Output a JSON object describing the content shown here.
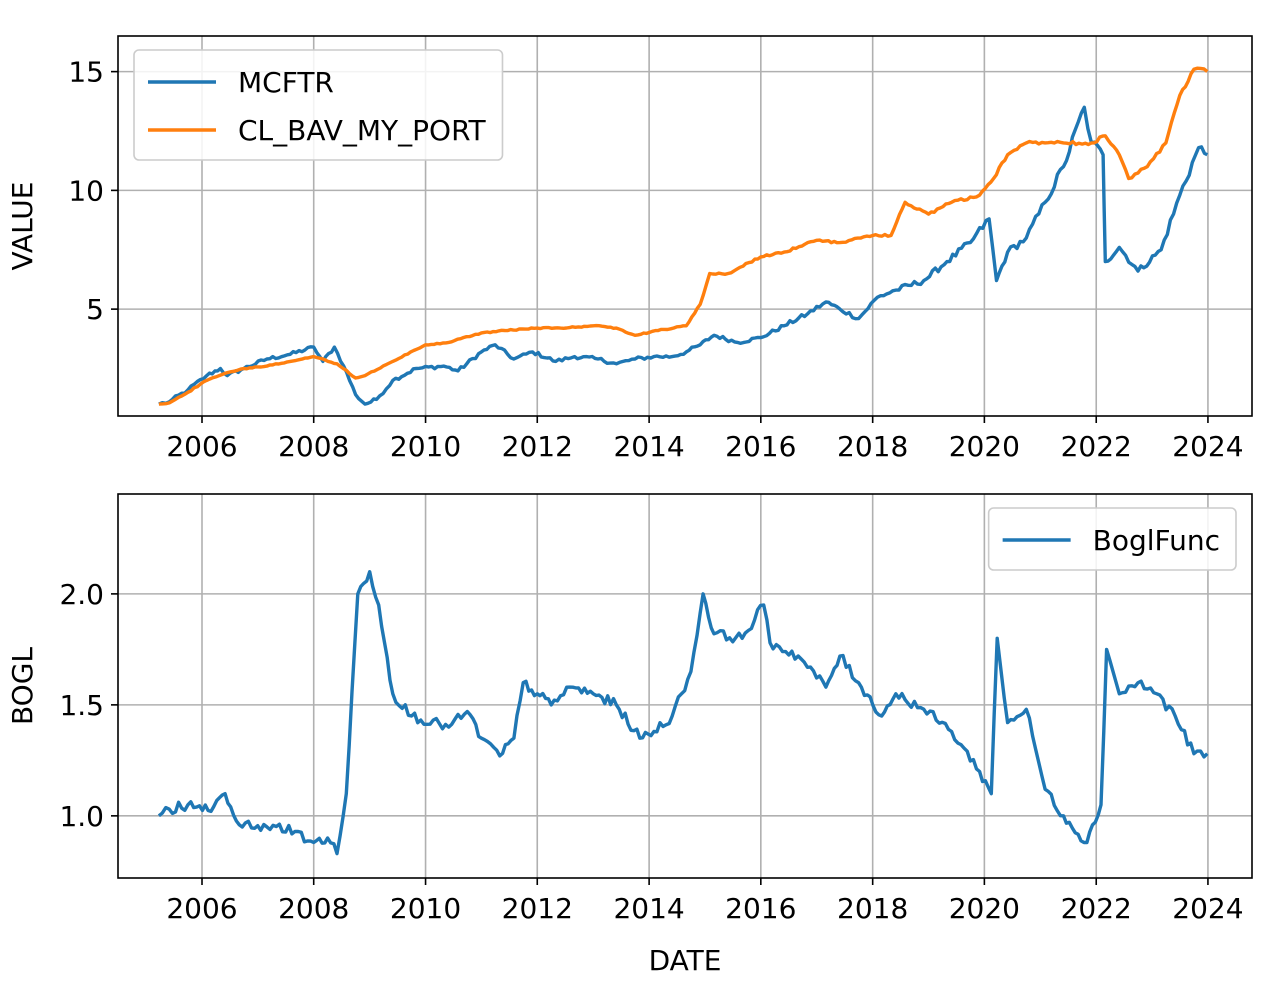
{
  "chart_data": [
    {
      "type": "line",
      "xlabel": "",
      "ylabel": "VALUE",
      "xlim": [
        "2004-07-01",
        "2024-10-15"
      ],
      "ylim": [
        0.5,
        16.5
      ],
      "x_ticks": [
        "2006",
        "2008",
        "2010",
        "2012",
        "2014",
        "2016",
        "2018",
        "2020",
        "2022",
        "2024"
      ],
      "y_ticks": [
        5,
        10,
        15
      ],
      "grid": true,
      "legend": "top-left",
      "series": [
        {
          "name": "MCFTR",
          "color": "#1f77b4",
          "points": [
            [
              "2005-03-25",
              1.0
            ],
            [
              "2005-06-01",
              1.1
            ],
            [
              "2005-10-01",
              1.6
            ],
            [
              "2006-02-01",
              2.2
            ],
            [
              "2006-05-01",
              2.5
            ],
            [
              "2006-06-15",
              2.2
            ],
            [
              "2006-10-01",
              2.5
            ],
            [
              "2007-03-01",
              2.9
            ],
            [
              "2007-08-01",
              3.1
            ],
            [
              "2008-01-01",
              3.4
            ],
            [
              "2008-03-01",
              2.8
            ],
            [
              "2008-05-15",
              3.4
            ],
            [
              "2008-07-15",
              2.6
            ],
            [
              "2008-10-01",
              1.4
            ],
            [
              "2008-12-01",
              1.0
            ],
            [
              "2009-02-15",
              1.2
            ],
            [
              "2009-06-01",
              2.0
            ],
            [
              "2009-11-01",
              2.5
            ],
            [
              "2010-05-01",
              2.6
            ],
            [
              "2010-08-01",
              2.4
            ],
            [
              "2011-01-01",
              3.2
            ],
            [
              "2011-04-01",
              3.5
            ],
            [
              "2011-08-01",
              2.9
            ],
            [
              "2011-12-01",
              3.2
            ],
            [
              "2012-05-01",
              2.8
            ],
            [
              "2012-09-01",
              3.0
            ],
            [
              "2013-02-01",
              2.9
            ],
            [
              "2013-06-01",
              2.7
            ],
            [
              "2013-10-01",
              2.9
            ],
            [
              "2014-02-01",
              3.0
            ],
            [
              "2014-06-01",
              3.0
            ],
            [
              "2014-09-01",
              3.2
            ],
            [
              "2014-12-01",
              3.5
            ],
            [
              "2015-03-01",
              3.9
            ],
            [
              "2015-08-01",
              3.6
            ],
            [
              "2016-01-01",
              3.8
            ],
            [
              "2016-06-01",
              4.3
            ],
            [
              "2016-11-01",
              4.8
            ],
            [
              "2017-03-01",
              5.3
            ],
            [
              "2017-06-01",
              5.0
            ],
            [
              "2017-10-01",
              4.6
            ],
            [
              "2018-02-01",
              5.5
            ],
            [
              "2018-06-01",
              5.8
            ],
            [
              "2018-12-01",
              6.2
            ],
            [
              "2019-05-01",
              7.0
            ],
            [
              "2019-10-01",
              7.8
            ],
            [
              "2020-02-01",
              8.8
            ],
            [
              "2020-03-20",
              6.2
            ],
            [
              "2020-06-01",
              7.4
            ],
            [
              "2020-10-01",
              8.0
            ],
            [
              "2021-02-01",
              9.5
            ],
            [
              "2021-06-01",
              11.0
            ],
            [
              "2021-10-15",
              13.5
            ],
            [
              "2021-12-01",
              12.0
            ],
            [
              "2022-02-15",
              11.5
            ],
            [
              "2022-03-01",
              7.0
            ],
            [
              "2022-06-01",
              7.6
            ],
            [
              "2022-10-01",
              6.6
            ],
            [
              "2023-03-01",
              7.5
            ],
            [
              "2023-07-01",
              9.8
            ],
            [
              "2023-11-01",
              11.8
            ],
            [
              "2023-12-28",
              11.5
            ]
          ]
        },
        {
          "name": "CL_BAV_MY_PORT",
          "color": "#ff7f0e",
          "points": [
            [
              "2005-03-25",
              1.0
            ],
            [
              "2005-06-01",
              1.05
            ],
            [
              "2005-10-01",
              1.5
            ],
            [
              "2006-02-01",
              2.0
            ],
            [
              "2006-06-01",
              2.3
            ],
            [
              "2006-10-01",
              2.5
            ],
            [
              "2007-03-01",
              2.6
            ],
            [
              "2007-08-01",
              2.8
            ],
            [
              "2008-01-01",
              3.0
            ],
            [
              "2008-06-01",
              2.7
            ],
            [
              "2008-10-01",
              2.1
            ],
            [
              "2008-12-01",
              2.2
            ],
            [
              "2009-06-01",
              2.8
            ],
            [
              "2010-01-01",
              3.5
            ],
            [
              "2010-06-01",
              3.6
            ],
            [
              "2011-01-01",
              4.0
            ],
            [
              "2011-06-01",
              4.1
            ],
            [
              "2012-01-01",
              4.2
            ],
            [
              "2012-06-01",
              4.2
            ],
            [
              "2013-01-01",
              4.3
            ],
            [
              "2013-06-01",
              4.2
            ],
            [
              "2013-10-01",
              3.9
            ],
            [
              "2014-03-01",
              4.1
            ],
            [
              "2014-09-01",
              4.3
            ],
            [
              "2014-12-01",
              5.2
            ],
            [
              "2015-02-01",
              6.5
            ],
            [
              "2015-06-01",
              6.5
            ],
            [
              "2016-01-01",
              7.2
            ],
            [
              "2016-06-01",
              7.4
            ],
            [
              "2017-01-01",
              7.9
            ],
            [
              "2017-06-01",
              7.8
            ],
            [
              "2018-01-01",
              8.1
            ],
            [
              "2018-05-01",
              8.1
            ],
            [
              "2018-08-01",
              9.5
            ],
            [
              "2019-01-01",
              9.0
            ],
            [
              "2019-06-01",
              9.5
            ],
            [
              "2019-12-01",
              9.8
            ],
            [
              "2020-03-01",
              10.5
            ],
            [
              "2020-06-01",
              11.5
            ],
            [
              "2020-10-01",
              12.0
            ],
            [
              "2021-02-01",
              12.0
            ],
            [
              "2021-06-01",
              12.0
            ],
            [
              "2021-12-01",
              12.0
            ],
            [
              "2022-03-01",
              12.3
            ],
            [
              "2022-06-01",
              11.5
            ],
            [
              "2022-08-01",
              10.5
            ],
            [
              "2022-12-01",
              11.0
            ],
            [
              "2023-04-01",
              12.0
            ],
            [
              "2023-07-01",
              14.0
            ],
            [
              "2023-10-01",
              15.1
            ],
            [
              "2023-12-28",
              15.0
            ]
          ]
        }
      ]
    },
    {
      "type": "line",
      "xlabel": "DATE",
      "ylabel": "BOGL",
      "xlim": [
        "2004-07-01",
        "2024-10-15"
      ],
      "ylim": [
        0.72,
        2.45
      ],
      "x_ticks": [
        "2006",
        "2008",
        "2010",
        "2012",
        "2014",
        "2016",
        "2018",
        "2020",
        "2022",
        "2024"
      ],
      "y_ticks": [
        "1.0",
        "1.5",
        "2.0"
      ],
      "grid": true,
      "legend": "top-right",
      "series": [
        {
          "name": "BoglFunc",
          "color": "#1f77b4",
          "points": [
            [
              "2005-03-25",
              1.0
            ],
            [
              "2005-06-01",
              1.03
            ],
            [
              "2005-10-01",
              1.05
            ],
            [
              "2006-03-01",
              1.02
            ],
            [
              "2006-06-01",
              1.1
            ],
            [
              "2006-09-01",
              0.96
            ],
            [
              "2007-03-01",
              0.95
            ],
            [
              "2007-09-01",
              0.93
            ],
            [
              "2008-01-01",
              0.88
            ],
            [
              "2008-04-01",
              0.9
            ],
            [
              "2008-06-01",
              0.83
            ],
            [
              "2008-08-01",
              1.1
            ],
            [
              "2008-10-15",
              2.0
            ],
            [
              "2009-01-01",
              2.1
            ],
            [
              "2009-03-01",
              1.95
            ],
            [
              "2009-06-01",
              1.55
            ],
            [
              "2009-10-01",
              1.45
            ],
            [
              "2010-06-01",
              1.4
            ],
            [
              "2010-10-01",
              1.47
            ],
            [
              "2011-01-01",
              1.35
            ],
            [
              "2011-05-01",
              1.27
            ],
            [
              "2011-08-01",
              1.35
            ],
            [
              "2011-10-01",
              1.6
            ],
            [
              "2012-01-01",
              1.55
            ],
            [
              "2012-04-01",
              1.5
            ],
            [
              "2012-08-01",
              1.58
            ],
            [
              "2013-01-01",
              1.55
            ],
            [
              "2013-06-01",
              1.5
            ],
            [
              "2013-11-01",
              1.35
            ],
            [
              "2014-02-01",
              1.38
            ],
            [
              "2014-06-01",
              1.45
            ],
            [
              "2014-10-01",
              1.65
            ],
            [
              "2014-12-20",
              2.0
            ],
            [
              "2015-03-01",
              1.82
            ],
            [
              "2015-09-01",
              1.8
            ],
            [
              "2016-01-20",
              1.95
            ],
            [
              "2016-03-01",
              1.78
            ],
            [
              "2016-09-01",
              1.72
            ],
            [
              "2017-03-01",
              1.58
            ],
            [
              "2017-06-01",
              1.72
            ],
            [
              "2017-10-01",
              1.6
            ],
            [
              "2018-03-01",
              1.45
            ],
            [
              "2018-06-01",
              1.55
            ],
            [
              "2018-12-01",
              1.48
            ],
            [
              "2019-06-01",
              1.38
            ],
            [
              "2019-12-01",
              1.2
            ],
            [
              "2020-02-15",
              1.1
            ],
            [
              "2020-03-25",
              1.8
            ],
            [
              "2020-06-01",
              1.42
            ],
            [
              "2020-10-01",
              1.48
            ],
            [
              "2021-02-01",
              1.12
            ],
            [
              "2021-06-01",
              1.0
            ],
            [
              "2021-11-01",
              0.88
            ],
            [
              "2022-02-01",
              1.05
            ],
            [
              "2022-03-10",
              1.75
            ],
            [
              "2022-06-01",
              1.55
            ],
            [
              "2022-10-01",
              1.6
            ],
            [
              "2023-02-01",
              1.55
            ],
            [
              "2023-06-01",
              1.45
            ],
            [
              "2023-10-01",
              1.28
            ],
            [
              "2023-12-28",
              1.28
            ]
          ]
        }
      ]
    }
  ]
}
